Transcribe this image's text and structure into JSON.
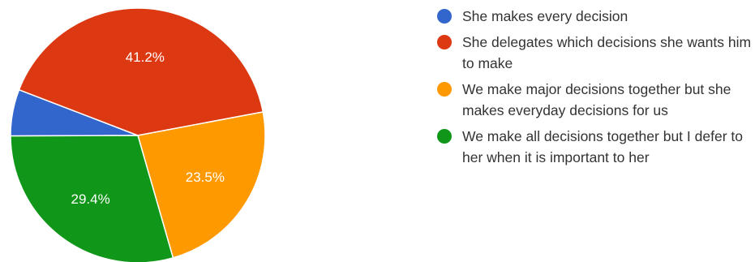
{
  "chart_data": {
    "type": "pie",
    "slices": [
      {
        "label": "She makes every decision",
        "value": 5.9,
        "display": "",
        "color": "#3366cc"
      },
      {
        "label": "She delegates which decisions she wants him to make",
        "value": 41.2,
        "display": "41.2%",
        "color": "#dc3912"
      },
      {
        "label": "We make major decisions together but she makes everyday decisions for us",
        "value": 23.5,
        "display": "23.5%",
        "color": "#ff9900"
      },
      {
        "label": "We make all decisions together but I defer to her when it is important to her",
        "value": 29.4,
        "display": "29.4%",
        "color": "#109618"
      }
    ],
    "legend_placement": "right"
  }
}
